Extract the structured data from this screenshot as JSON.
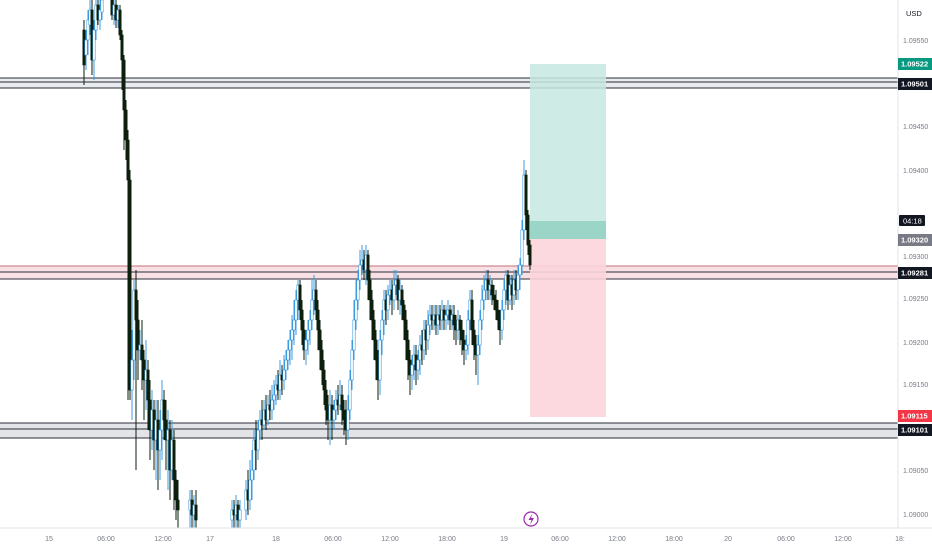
{
  "chart_data": {
    "type": "candlestick",
    "currency": "USD",
    "countdown": "04:18",
    "colors": {
      "up_body": "#ffffff",
      "up_wick": "#3c9be0",
      "down_body": "#0d1f0d",
      "down_wick": "#0d1f0d",
      "zone_line": "#2a2e39",
      "zone_fill": "#d5d8de",
      "resistance_fill": "#f4c7cf",
      "resistance_line": "#c2707d",
      "target_fill": "#c7e8e1",
      "target_entry_band": "#8fd0c2",
      "stop_fill": "#fbd5da",
      "label_green": "#089981",
      "label_red": "#f23645",
      "label_black": "#131722",
      "label_gray": "#787b86"
    },
    "y_axis": {
      "ticks": [
        "1.09550",
        "1.09450",
        "1.09400",
        "1.09300",
        "1.09250",
        "1.09200",
        "1.09150",
        "1.09050",
        "1.09000"
      ]
    },
    "x_axis": {
      "ticks": [
        "15",
        "06:00",
        "12:00",
        "17",
        "18",
        "06:00",
        "12:00",
        "18:00",
        "19",
        "06:00",
        "12:00",
        "18:00",
        "20",
        "06:00",
        "12:00",
        "18:"
      ]
    },
    "price_labels": [
      {
        "value": "1.09522",
        "style": "green"
      },
      {
        "value": "1.09501",
        "style": "black"
      },
      {
        "value": "1.09320",
        "style": "gray"
      },
      {
        "value": "1.09281",
        "style": "black"
      },
      {
        "value": "1.09115",
        "style": "red"
      },
      {
        "value": "1.09101",
        "style": "black"
      }
    ],
    "zones": [
      {
        "type": "support-resistance",
        "from": 1.0949,
        "to": 1.0951
      },
      {
        "type": "resistance",
        "from": 1.09275,
        "to": 1.09295
      },
      {
        "type": "support",
        "from": 1.0909,
        "to": 1.0911
      }
    ],
    "position": {
      "side": "long",
      "entry": 1.0932,
      "target": 1.09522,
      "stop": 1.09115,
      "entry_band_top": 1.09338
    },
    "ohlc_segments": [
      [
        0.0,
        1.0965,
        1.0964
      ],
      [
        0.05,
        1.0955,
        1.0952
      ],
      [
        0.1,
        1.0965,
        1.0958
      ],
      [
        0.15,
        1.0968,
        1.0962
      ],
      [
        0.2,
        1.096,
        1.0955
      ],
      [
        0.25,
        1.095,
        1.0948
      ],
      [
        0.3,
        1.094,
        1.0941
      ],
      [
        0.35,
        1.093,
        1.0928
      ],
      [
        0.38,
        1.0918,
        1.0914
      ],
      [
        0.42,
        1.092,
        1.0922
      ],
      [
        0.45,
        1.0912,
        1.091
      ],
      [
        0.5,
        1.0905,
        1.0904
      ],
      [
        0.55,
        1.0895,
        1.0893
      ],
      [
        0.6,
        1.0893,
        1.0894
      ],
      [
        0.65,
        1.0895,
        1.0896
      ],
      [
        0.7,
        1.0892,
        1.0893
      ],
      [
        0.8,
        1.0896,
        1.0898
      ],
      [
        0.9,
        1.0903,
        1.0905
      ],
      [
        1.0,
        1.091,
        1.0912
      ],
      [
        1.1,
        1.0915,
        1.0918
      ],
      [
        1.2,
        1.0922,
        1.0925
      ],
      [
        1.3,
        1.0918,
        1.0921
      ],
      [
        1.4,
        1.0925,
        1.0928
      ],
      [
        1.5,
        1.092,
        1.0922
      ],
      [
        1.6,
        1.0912,
        1.0914
      ],
      [
        1.7,
        1.0909,
        1.0911
      ],
      [
        1.8,
        1.0918,
        1.0921
      ],
      [
        1.9,
        1.0926,
        1.0929
      ],
      [
        2.0,
        1.092,
        1.0922
      ],
      [
        2.1,
        1.0918,
        1.092
      ],
      [
        2.2,
        1.0926,
        1.0928
      ],
      [
        2.3,
        1.0918,
        1.0921
      ],
      [
        2.4,
        1.0916,
        1.0919
      ],
      [
        2.5,
        1.0922,
        1.0924
      ],
      [
        2.6,
        1.092,
        1.0922
      ],
      [
        2.7,
        1.0921,
        1.0923
      ],
      [
        2.8,
        1.0918,
        1.092
      ],
      [
        2.9,
        1.0926,
        1.0928
      ],
      [
        3.0,
        1.0925,
        1.0927
      ],
      [
        3.1,
        1.0934,
        1.093
      ]
    ]
  }
}
